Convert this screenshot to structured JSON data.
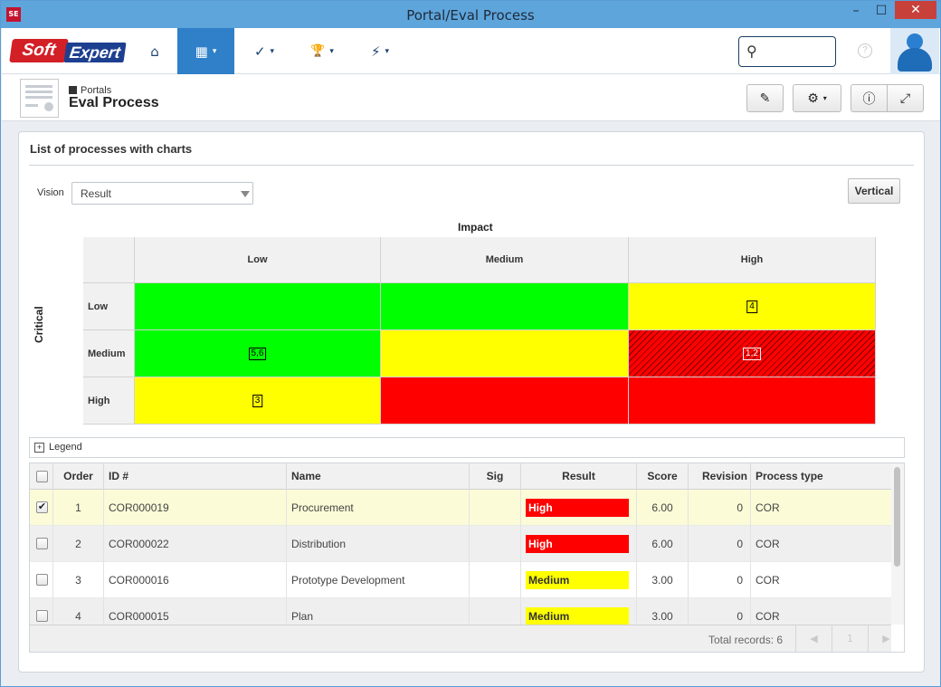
{
  "window": {
    "title": "Portal/Eval Process",
    "app_icon": "SE",
    "min": "–",
    "max": "☐",
    "close": "✕"
  },
  "logo": {
    "part1": "Soft",
    "part2": "Expert"
  },
  "nav": {
    "home_icon": "⌂",
    "portal_icon": "▦",
    "tasks_icon": "✓",
    "awards_icon": "🏆",
    "quick_icon": "⚡",
    "caret": "▾"
  },
  "search": {
    "icon": "⚲",
    "placeholder": ""
  },
  "help": "?",
  "header": {
    "breadcrumb": "Portals",
    "title": "Eval Process",
    "edit_icon": "✎",
    "settings_icon": "⚙",
    "info_icon": "ⓘ",
    "expand_icon": "⤢"
  },
  "panel": {
    "title": "List of processes with charts",
    "vision_label": "Vision",
    "vision_value": "Result",
    "vertical_btn": "Vertical"
  },
  "matrix": {
    "impact_label": "Impact",
    "critical_label": "Critical",
    "columns": [
      "Low",
      "Medium",
      "High"
    ],
    "rows": [
      {
        "label": "Low",
        "cells": [
          {
            "color": "green",
            "ids": ""
          },
          {
            "color": "green",
            "ids": ""
          },
          {
            "color": "yellow",
            "ids": "4"
          }
        ]
      },
      {
        "label": "Medium",
        "cells": [
          {
            "color": "green",
            "ids": "5,6"
          },
          {
            "color": "yellow",
            "ids": ""
          },
          {
            "color": "hatch",
            "ids": "1,2"
          }
        ]
      },
      {
        "label": "High",
        "cells": [
          {
            "color": "yellow",
            "ids": "3"
          },
          {
            "color": "red",
            "ids": ""
          },
          {
            "color": "red",
            "ids": ""
          }
        ]
      }
    ]
  },
  "legend": {
    "label": "Legend",
    "toggle": "+"
  },
  "grid": {
    "headers": [
      "Order",
      "ID #",
      "Name",
      "Sig",
      "Result",
      "Score",
      "Revision",
      "Process type"
    ],
    "rows": [
      {
        "checked": true,
        "order": "1",
        "id": "COR000019",
        "name": "Procurement",
        "sig": "",
        "result": "High",
        "score": "6.00",
        "revision": "0",
        "type": "COR"
      },
      {
        "checked": false,
        "order": "2",
        "id": "COR000022",
        "name": "Distribution",
        "sig": "",
        "result": "High",
        "score": "6.00",
        "revision": "0",
        "type": "COR"
      },
      {
        "checked": false,
        "order": "3",
        "id": "COR000016",
        "name": "Prototype Development",
        "sig": "",
        "result": "Medium",
        "score": "3.00",
        "revision": "0",
        "type": "COR"
      },
      {
        "checked": false,
        "order": "4",
        "id": "COR000015",
        "name": "Plan",
        "sig": "",
        "result": "Medium",
        "score": "3.00",
        "revision": "0",
        "type": "COR"
      }
    ],
    "footer": {
      "total": "Total records: 6",
      "prev": "◀",
      "page": "1",
      "next": "▶"
    }
  },
  "colors": {
    "nav_active": "#2f80c9",
    "high": "#ff0000",
    "medium": "#ffff00",
    "low": "#00ff00",
    "selected_row": "#fbfbd8"
  }
}
